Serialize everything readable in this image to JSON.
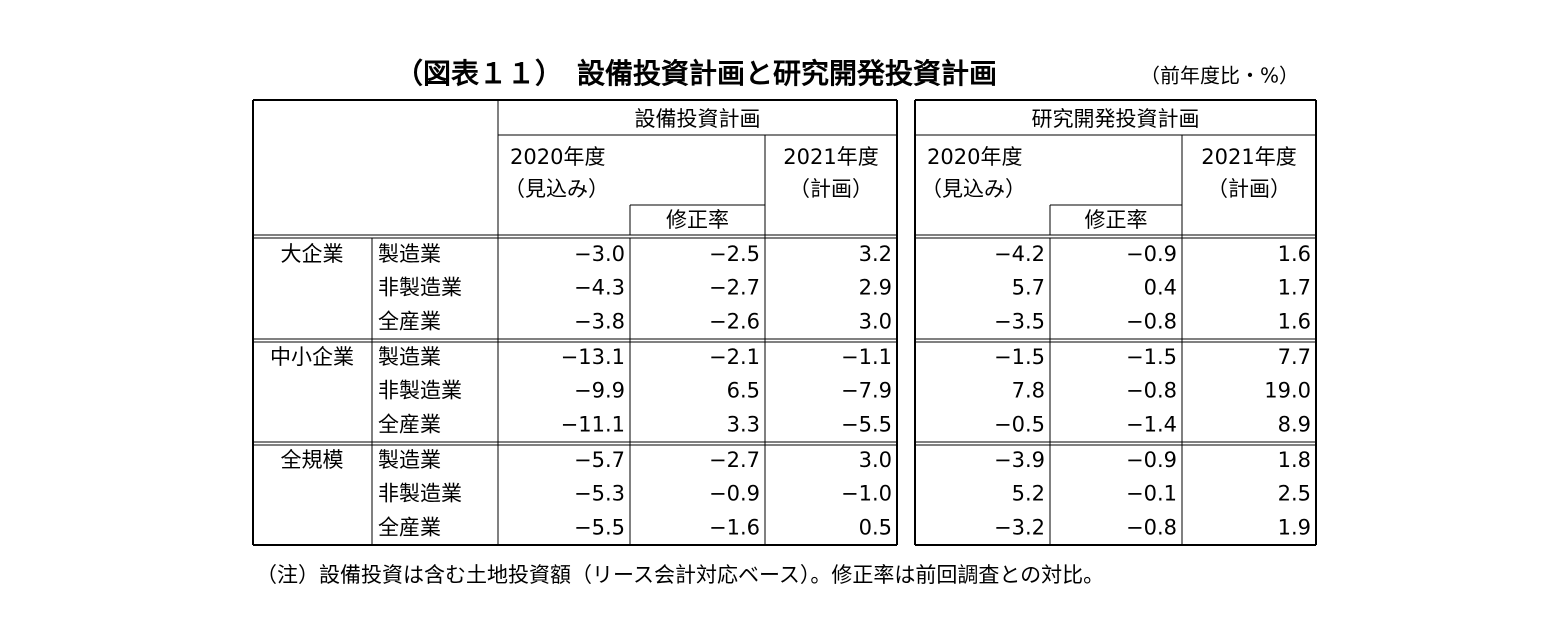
{
  "title": "（図表１１）　設備投資計画と研究開発投資計画",
  "unit": "（前年度比・%）",
  "table": {
    "groups": [
      {
        "title": "設備投資計画",
        "year_a": "2020年度",
        "year_a_note": "（見込み）",
        "revision": "修正率",
        "year_b": "2021年度",
        "year_b_note": "（計画）"
      },
      {
        "title": "研究開発投資計画",
        "year_a": "2020年度",
        "year_a_note": "（見込み）",
        "revision": "修正率",
        "year_b": "2021年度",
        "year_b_note": "（計画）"
      }
    ],
    "sections": [
      {
        "size": "大企業",
        "rows": [
          {
            "industry": "製造業",
            "values": [
              "−3.0",
              "−2.5",
              "3.2",
              "−4.2",
              "−0.9",
              "1.6"
            ]
          },
          {
            "industry": "非製造業",
            "values": [
              "−4.3",
              "−2.7",
              "2.9",
              "5.7",
              "0.4",
              "1.7"
            ]
          },
          {
            "industry": "全産業",
            "values": [
              "−3.8",
              "−2.6",
              "3.0",
              "−3.5",
              "−0.8",
              "1.6"
            ]
          }
        ]
      },
      {
        "size": "中小企業",
        "rows": [
          {
            "industry": "製造業",
            "values": [
              "−13.1",
              "−2.1",
              "−1.1",
              "−1.5",
              "−1.5",
              "7.7"
            ]
          },
          {
            "industry": "非製造業",
            "values": [
              "−9.9",
              "6.5",
              "−7.9",
              "7.8",
              "−0.8",
              "19.0"
            ]
          },
          {
            "industry": "全産業",
            "values": [
              "−11.1",
              "3.3",
              "−5.5",
              "−0.5",
              "−1.4",
              "8.9"
            ]
          }
        ]
      },
      {
        "size": "全規模",
        "rows": [
          {
            "industry": "製造業",
            "values": [
              "−5.7",
              "−2.7",
              "3.0",
              "−3.9",
              "−0.9",
              "1.8"
            ]
          },
          {
            "industry": "非製造業",
            "values": [
              "−5.3",
              "−0.9",
              "−1.0",
              "5.2",
              "−0.1",
              "2.5"
            ]
          },
          {
            "industry": "全産業",
            "values": [
              "−5.5",
              "−1.6",
              "0.5",
              "−3.2",
              "−0.8",
              "1.9"
            ]
          }
        ]
      }
    ]
  },
  "note": "（注）設備投資は含む土地投資額（リース会計対応ベース）。修正率は前回調査との対比。"
}
